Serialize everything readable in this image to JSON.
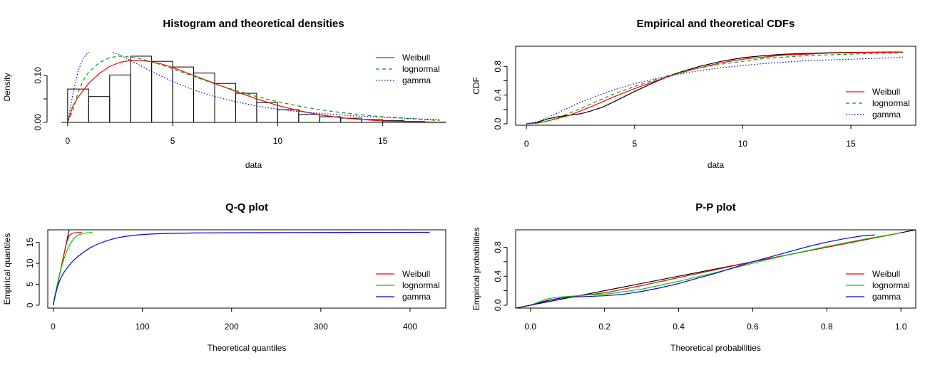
{
  "colors": {
    "weibull": "#ff0000",
    "lognormal_dens": "#00a000",
    "lognormal": "#00cc00",
    "gamma": "#0000ff",
    "empirical": "#000000"
  },
  "chart_data": [
    {
      "id": "density",
      "type": "histogram",
      "title": "Histogram and theoretical densities",
      "xlabel": "data",
      "ylabel": "Density",
      "xlim": [
        -0.3,
        18
      ],
      "ylim": [
        0,
        0.15
      ],
      "xticks": [
        0,
        5,
        10,
        15
      ],
      "xtick_labels": [
        "0",
        "5",
        "10",
        "15"
      ],
      "yticks": [
        0,
        0.05,
        0.1
      ],
      "ytick_labels": [
        "0.00",
        "",
        "0.10"
      ],
      "bins": [
        0,
        1,
        2,
        3,
        4,
        5,
        6,
        7,
        8,
        9,
        10,
        11,
        12,
        13,
        14,
        15,
        16,
        17,
        18
      ],
      "values": [
        0.071,
        0.055,
        0.101,
        0.141,
        0.13,
        0.118,
        0.105,
        0.083,
        0.062,
        0.042,
        0.027,
        0.017,
        0.012,
        0.009,
        0.006,
        0.004,
        0.002,
        0.0005
      ],
      "legend": {
        "position": "top-right",
        "entries": [
          "Weibull",
          "lognormal",
          "gamma"
        ]
      },
      "series": [
        {
          "name": "Weibull",
          "color": "#ff0000",
          "dash": "solid",
          "x": [
            0,
            0.25,
            0.5,
            1,
            1.5,
            2,
            2.5,
            3,
            3.5,
            4,
            4.5,
            5,
            6,
            7,
            8,
            9,
            10,
            11,
            12,
            13,
            14,
            15,
            16,
            17,
            17.7
          ],
          "values": [
            0,
            0.035,
            0.054,
            0.083,
            0.104,
            0.119,
            0.128,
            0.132,
            0.132,
            0.129,
            0.124,
            0.117,
            0.1,
            0.083,
            0.066,
            0.05,
            0.036,
            0.025,
            0.016,
            0.01,
            0.006,
            0.003,
            0.002,
            0.001,
            0.0006
          ]
        },
        {
          "name": "lognormal",
          "color": "#00a000",
          "dash": "dashed",
          "x": [
            0,
            0.25,
            0.5,
            0.75,
            1,
            1.5,
            2,
            2.5,
            3,
            3.5,
            4,
            4.5,
            5,
            6,
            7,
            8,
            9,
            10,
            11,
            12,
            13,
            14,
            15,
            16,
            17,
            17.7
          ],
          "values": [
            0,
            0.025,
            0.064,
            0.09,
            0.107,
            0.127,
            0.138,
            0.141,
            0.139,
            0.135,
            0.129,
            0.122,
            0.114,
            0.098,
            0.082,
            0.068,
            0.055,
            0.044,
            0.035,
            0.027,
            0.021,
            0.016,
            0.012,
            0.009,
            0.006,
            0.004
          ]
        },
        {
          "name": "gamma",
          "color": "#0000ff",
          "dash": "dotted",
          "x": [
            0,
            0.25,
            0.5,
            0.75,
            1,
            1.25,
            1.5,
            2,
            2.5,
            3,
            3.5,
            4,
            5,
            6,
            7,
            8,
            9,
            10,
            11,
            12,
            13,
            14,
            15,
            16,
            17,
            17.7
          ],
          "values": [
            0,
            0.06,
            0.11,
            0.137,
            0.15,
            0.155,
            0.155,
            0.152,
            0.143,
            0.132,
            0.12,
            0.108,
            0.087,
            0.069,
            0.055,
            0.044,
            0.035,
            0.028,
            0.023,
            0.019,
            0.016,
            0.013,
            0.011,
            0.009,
            0.007,
            0.006
          ]
        }
      ]
    },
    {
      "id": "cdf",
      "type": "line",
      "title": "Empirical and theoretical CDFs",
      "xlabel": "data",
      "ylabel": "CDF",
      "xlim": [
        -0.5,
        18
      ],
      "ylim": [
        -0.02,
        1.08
      ],
      "xticks": [
        0,
        5,
        10,
        15
      ],
      "xtick_labels": [
        "0",
        "5",
        "10",
        "15"
      ],
      "yticks": [
        0,
        0.2,
        0.4,
        0.6,
        0.8
      ],
      "ytick_labels": [
        "0.0",
        "",
        "0.4",
        "",
        "0.8"
      ],
      "legend": {
        "position": "bottom-right",
        "entries": [
          "Weibull",
          "lognormal",
          "gamma"
        ]
      },
      "series": [
        {
          "name": "",
          "color": "#000000",
          "dash": "solid",
          "x": [
            0,
            0.3,
            0.5,
            0.8,
            1,
            1.5,
            2,
            2.5,
            3,
            3.5,
            4,
            5,
            6,
            7,
            8,
            9,
            10,
            11,
            12,
            13,
            14,
            15,
            16,
            17,
            17.4
          ],
          "values": [
            0,
            0.01,
            0.02,
            0.05,
            0.07,
            0.1,
            0.12,
            0.14,
            0.18,
            0.23,
            0.3,
            0.45,
            0.59,
            0.71,
            0.8,
            0.87,
            0.92,
            0.95,
            0.97,
            0.98,
            0.99,
            0.995,
            0.998,
            1.0,
            1.0
          ]
        },
        {
          "name": "Weibull",
          "color": "#ff0000",
          "dash": "solid",
          "x": [
            0,
            0.5,
            1,
            1.5,
            2,
            2.5,
            3,
            4,
            5,
            6,
            7,
            8,
            9,
            10,
            11,
            12,
            13,
            14,
            15,
            16,
            17,
            17.4
          ],
          "values": [
            0,
            0.01,
            0.04,
            0.08,
            0.12,
            0.18,
            0.24,
            0.37,
            0.49,
            0.6,
            0.7,
            0.78,
            0.85,
            0.9,
            0.93,
            0.96,
            0.97,
            0.985,
            0.99,
            0.995,
            0.998,
            0.999
          ]
        },
        {
          "name": "lognormal",
          "color": "#00a000",
          "dash": "dashed",
          "x": [
            0,
            0.5,
            1,
            1.5,
            2,
            2.5,
            3,
            4,
            5,
            6,
            7,
            8,
            9,
            10,
            11,
            12,
            13,
            14,
            15,
            16,
            17,
            17.4
          ],
          "values": [
            0,
            0.01,
            0.04,
            0.09,
            0.15,
            0.21,
            0.28,
            0.41,
            0.52,
            0.62,
            0.71,
            0.78,
            0.83,
            0.87,
            0.91,
            0.93,
            0.95,
            0.96,
            0.97,
            0.98,
            0.985,
            0.99
          ]
        },
        {
          "name": "gamma",
          "color": "#0000ff",
          "dash": "dotted",
          "x": [
            0,
            0.5,
            1,
            1.5,
            2,
            2.5,
            3,
            4,
            5,
            6,
            7,
            8,
            9,
            10,
            11,
            12,
            13,
            14,
            15,
            16,
            17,
            17.4
          ],
          "values": [
            0,
            0.03,
            0.09,
            0.16,
            0.23,
            0.3,
            0.36,
            0.47,
            0.56,
            0.63,
            0.69,
            0.74,
            0.78,
            0.81,
            0.84,
            0.86,
            0.88,
            0.89,
            0.9,
            0.91,
            0.92,
            0.93
          ]
        }
      ]
    },
    {
      "id": "qq",
      "type": "line",
      "title": "Q-Q plot",
      "xlabel": "Theoretical quantiles",
      "ylabel": "Empirical quantiles",
      "xlim": [
        -6,
        440
      ],
      "ylim": [
        -0.7,
        18
      ],
      "xticks": [
        0,
        100,
        200,
        300,
        400
      ],
      "xtick_labels": [
        "0",
        "100",
        "200",
        "300",
        "400"
      ],
      "yticks": [
        0,
        5,
        10,
        15
      ],
      "ytick_labels": [
        "0",
        "5",
        "10",
        "15"
      ],
      "legend": {
        "position": "bottom-right",
        "entries": [
          "Weibull",
          "lognormal",
          "gamma"
        ]
      },
      "series": [
        {
          "name": "",
          "color": "#000000",
          "dash": "solid",
          "x": [
            0,
            18
          ],
          "values": [
            0,
            18
          ]
        },
        {
          "name": "Weibull",
          "color": "#ff0000",
          "dash": "solid",
          "x": [
            0,
            2,
            4,
            6,
            8,
            10,
            12,
            14,
            16,
            18,
            20,
            22,
            25,
            28,
            32
          ],
          "values": [
            0,
            2,
            4,
            6,
            8,
            10,
            12,
            14,
            15.5,
            16.6,
            17.0,
            17.2,
            17.3,
            17.35,
            17.4
          ]
        },
        {
          "name": "lognormal",
          "color": "#00cc00",
          "dash": "solid",
          "x": [
            0,
            2,
            4,
            6,
            8,
            10,
            12,
            15,
            18,
            21,
            24,
            27,
            30,
            35,
            40,
            44
          ],
          "values": [
            0,
            2.3,
            4.4,
            6.3,
            8.0,
            9.6,
            11.0,
            12.8,
            14.2,
            15.3,
            16.1,
            16.6,
            16.9,
            17.2,
            17.3,
            17.4
          ]
        },
        {
          "name": "gamma",
          "color": "#0000ff",
          "dash": "solid",
          "x": [
            0,
            2,
            5,
            8,
            12,
            17,
            22,
            28,
            35,
            42,
            50,
            60,
            70,
            80,
            95,
            110,
            130,
            160,
            200,
            260,
            330,
            422
          ],
          "values": [
            0,
            2,
            4.5,
            6.2,
            7.8,
            9.3,
            10.5,
            11.7,
            12.8,
            13.8,
            14.6,
            15.4,
            16.0,
            16.4,
            16.8,
            17.0,
            17.15,
            17.25,
            17.3,
            17.35,
            17.38,
            17.4
          ]
        }
      ]
    },
    {
      "id": "pp",
      "type": "line",
      "title": "P-P plot",
      "xlabel": "Theoretical probabilities",
      "ylabel": "Empirical probabilities",
      "xlim": [
        -0.04,
        1.04
      ],
      "ylim": [
        -0.04,
        1.04
      ],
      "xticks": [
        0,
        0.2,
        0.4,
        0.6,
        0.8,
        1.0
      ],
      "xtick_labels": [
        "0.0",
        "0.2",
        "0.4",
        "0.6",
        "0.8",
        "1.0"
      ],
      "yticks": [
        0,
        0.2,
        0.4,
        0.6,
        0.8
      ],
      "ytick_labels": [
        "0.0",
        "",
        "0.4",
        "",
        "0.8"
      ],
      "legend": {
        "position": "bottom-right",
        "entries": [
          "Weibull",
          "lognormal",
          "gamma"
        ]
      },
      "series": [
        {
          "name": "",
          "color": "#000000",
          "dash": "solid",
          "x": [
            -0.04,
            1.04
          ],
          "values": [
            -0.04,
            1.04
          ]
        },
        {
          "name": "Weibull",
          "color": "#ff0000",
          "dash": "solid",
          "x": [
            0,
            0.02,
            0.04,
            0.07,
            0.1,
            0.15,
            0.2,
            0.3,
            0.4,
            0.5,
            0.6,
            0.7,
            0.8,
            0.9,
            1.0
          ],
          "values": [
            0,
            0.03,
            0.06,
            0.09,
            0.11,
            0.14,
            0.17,
            0.27,
            0.38,
            0.49,
            0.6,
            0.7,
            0.8,
            0.9,
            1.0
          ]
        },
        {
          "name": "lognormal",
          "color": "#00cc00",
          "dash": "solid",
          "x": [
            0,
            0.02,
            0.04,
            0.07,
            0.1,
            0.15,
            0.2,
            0.3,
            0.4,
            0.5,
            0.6,
            0.7,
            0.8,
            0.9,
            1.0
          ],
          "values": [
            0,
            0.04,
            0.08,
            0.11,
            0.12,
            0.14,
            0.15,
            0.22,
            0.33,
            0.45,
            0.58,
            0.7,
            0.81,
            0.91,
            1.0
          ]
        },
        {
          "name": "gamma",
          "color": "#0000ff",
          "dash": "solid",
          "x": [
            0,
            0.03,
            0.06,
            0.1,
            0.15,
            0.2,
            0.25,
            0.3,
            0.35,
            0.4,
            0.45,
            0.5,
            0.55,
            0.6,
            0.65,
            0.7,
            0.75,
            0.8,
            0.85,
            0.9,
            0.93
          ],
          "values": [
            0,
            0.04,
            0.08,
            0.11,
            0.12,
            0.13,
            0.15,
            0.19,
            0.24,
            0.3,
            0.37,
            0.44,
            0.52,
            0.6,
            0.67,
            0.74,
            0.81,
            0.87,
            0.92,
            0.96,
            0.97
          ]
        }
      ]
    }
  ]
}
